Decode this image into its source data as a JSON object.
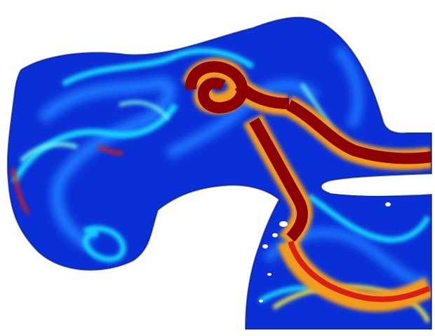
{
  "figure": {
    "kind": "flow-speed-field",
    "colormap": "jet",
    "background": "#ffffff",
    "palette": {
      "deep": "#001a8c",
      "blue": "#0a2fd6",
      "mid_blue": "#1f74ff",
      "cyan": "#19d7ff",
      "aqua": "#6ff2e6",
      "yellow": "#f2ee3a",
      "orange": "#f39b1f",
      "red": "#d91e12",
      "dark_red": "#8d0000"
    }
  }
}
